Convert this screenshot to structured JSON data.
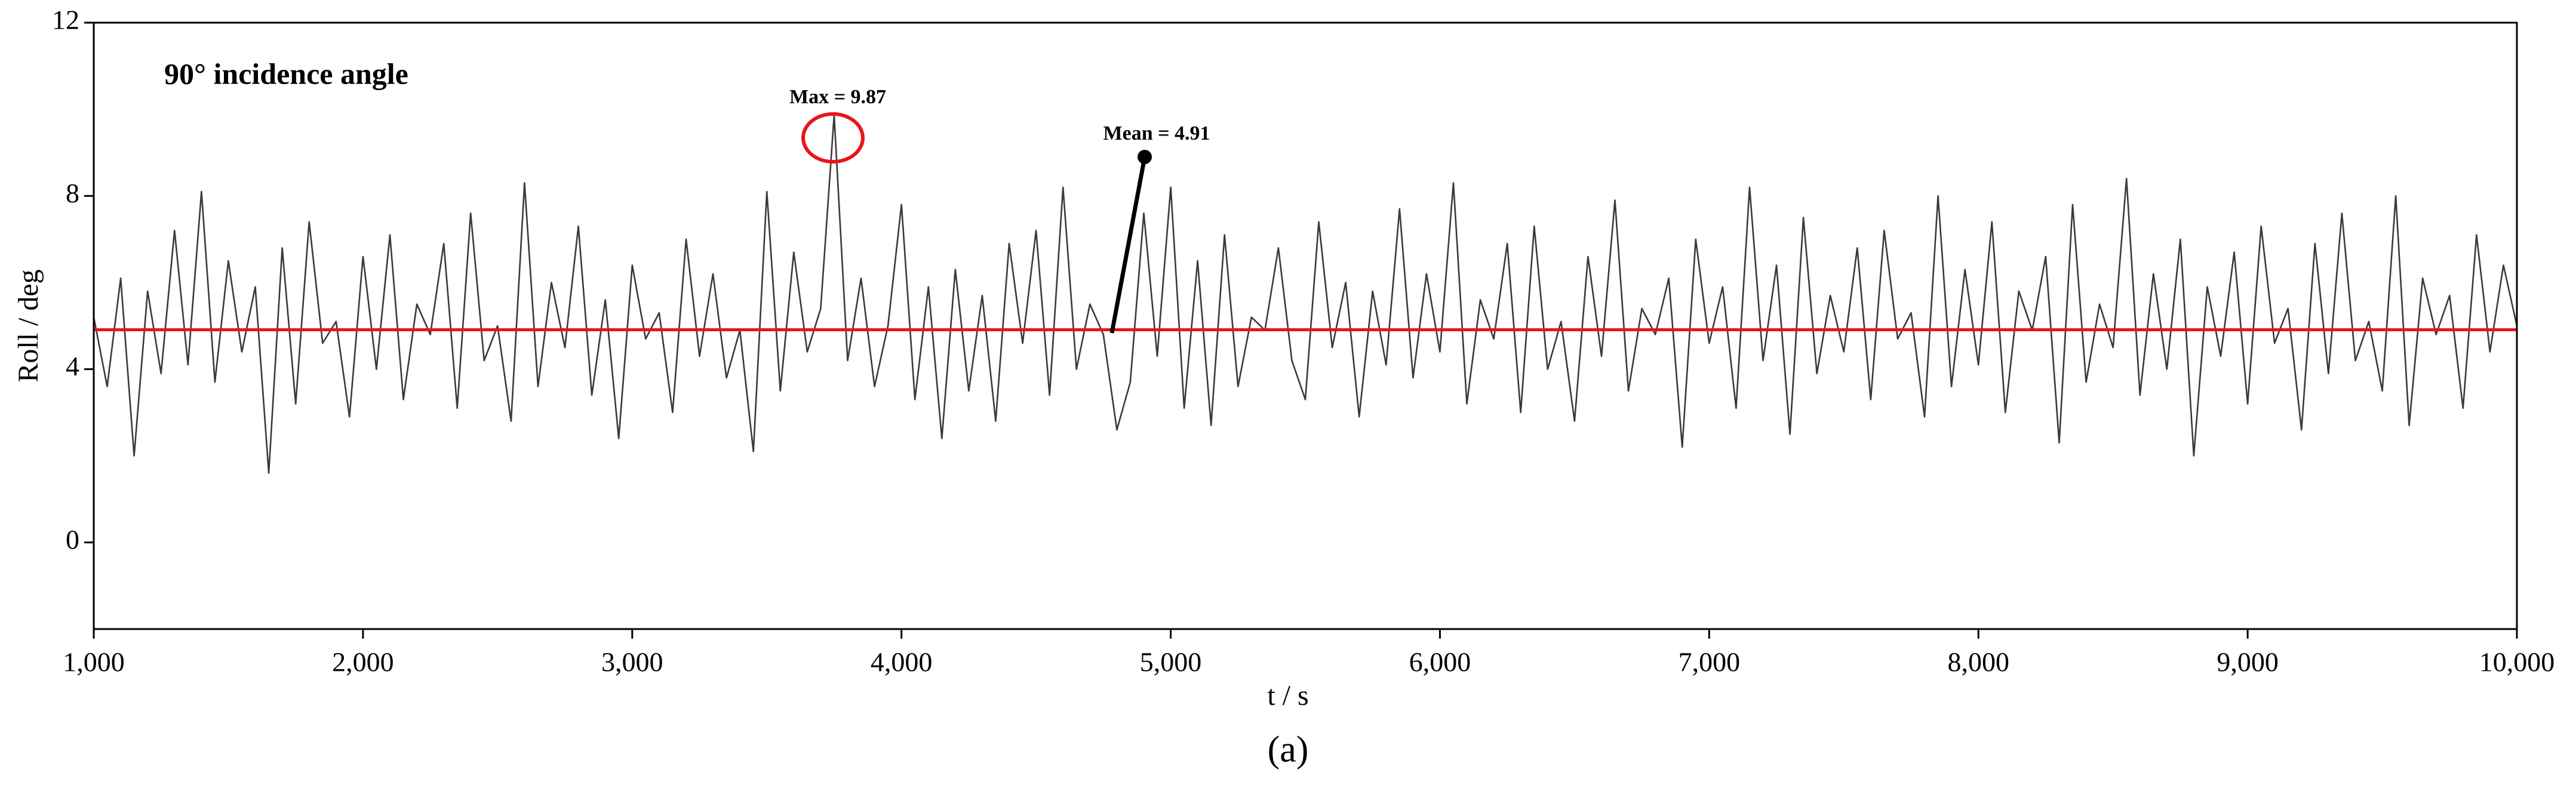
{
  "chart_data": {
    "type": "line",
    "title": "90° incidence angle",
    "xlabel": "t / s",
    "ylabel": "Roll / deg",
    "caption": "(a)",
    "max_label": "Max = 9.87",
    "mean_label": "Mean = 4.91",
    "mean": 4.91,
    "mean_color": "#e8141b",
    "xlim": [
      1000,
      10000
    ],
    "ylim": [
      -2,
      12
    ],
    "xticks": [
      {
        "value": 1000,
        "label": "1,000"
      },
      {
        "value": 2000,
        "label": "2,000"
      },
      {
        "value": 3000,
        "label": "3,000"
      },
      {
        "value": 4000,
        "label": "4,000"
      },
      {
        "value": 5000,
        "label": "5,000"
      },
      {
        "value": 6000,
        "label": "6,000"
      },
      {
        "value": 7000,
        "label": "7,000"
      },
      {
        "value": 8000,
        "label": "8,000"
      },
      {
        "value": 9000,
        "label": "9,000"
      },
      {
        "value": 10000,
        "label": "10,000"
      }
    ],
    "yticks": [
      0,
      4,
      8,
      12
    ],
    "x": [
      1000,
      1050,
      1100,
      1150,
      1200,
      1250,
      1300,
      1350,
      1400,
      1450,
      1500,
      1550,
      1600,
      1650,
      1700,
      1750,
      1800,
      1850,
      1900,
      1950,
      2000,
      2050,
      2100,
      2150,
      2200,
      2250,
      2300,
      2350,
      2400,
      2450,
      2500,
      2550,
      2600,
      2650,
      2700,
      2750,
      2800,
      2850,
      2900,
      2950,
      3000,
      3050,
      3100,
      3150,
      3200,
      3250,
      3300,
      3350,
      3400,
      3450,
      3500,
      3550,
      3600,
      3650,
      3700,
      3750,
      3800,
      3850,
      3900,
      3950,
      4000,
      4050,
      4100,
      4150,
      4200,
      4250,
      4300,
      4350,
      4400,
      4450,
      4500,
      4550,
      4600,
      4650,
      4700,
      4750,
      4800,
      4850,
      4900,
      4950,
      5000,
      5050,
      5100,
      5150,
      5200,
      5250,
      5300,
      5350,
      5400,
      5450,
      5500,
      5550,
      5600,
      5650,
      5700,
      5750,
      5800,
      5850,
      5900,
      5950,
      6000,
      6050,
      6100,
      6150,
      6200,
      6250,
      6300,
      6350,
      6400,
      6450,
      6500,
      6550,
      6600,
      6650,
      6700,
      6750,
      6800,
      6850,
      6900,
      6950,
      7000,
      7050,
      7100,
      7150,
      7200,
      7250,
      7300,
      7350,
      7400,
      7450,
      7500,
      7550,
      7600,
      7650,
      7700,
      7750,
      7800,
      7850,
      7900,
      7950,
      8000,
      8050,
      8100,
      8150,
      8200,
      8250,
      8300,
      8350,
      8400,
      8450,
      8500,
      8550,
      8600,
      8650,
      8700,
      8750,
      8800,
      8850,
      8900,
      8950,
      9000,
      9050,
      9100,
      9150,
      9200,
      9250,
      9300,
      9350,
      9400,
      9450,
      9500,
      9550,
      9600,
      9650,
      9700,
      9750,
      9800,
      9850,
      9900,
      9950,
      10000
    ],
    "series": [
      {
        "color": "#3a3a3a",
        "values": [
          5.2,
          3.6,
          6.1,
          2.0,
          5.8,
          3.9,
          7.2,
          4.1,
          8.1,
          3.7,
          6.5,
          4.4,
          5.9,
          1.6,
          6.8,
          3.2,
          7.4,
          4.6,
          5.1,
          2.9,
          6.6,
          4.0,
          7.1,
          3.3,
          5.5,
          4.8,
          6.9,
          3.1,
          7.6,
          4.2,
          5.0,
          2.8,
          8.3,
          3.6,
          6.0,
          4.5,
          7.3,
          3.4,
          5.6,
          2.4,
          6.4,
          4.7,
          5.3,
          3.0,
          7.0,
          4.3,
          6.2,
          3.8,
          4.9,
          2.1,
          8.1,
          3.5,
          6.7,
          4.4,
          5.4,
          9.87,
          4.2,
          6.1,
          3.6,
          5.0,
          7.8,
          3.3,
          5.9,
          2.4,
          6.3,
          3.5,
          5.7,
          2.8,
          6.9,
          4.6,
          7.2,
          3.4,
          8.2,
          4.0,
          5.5,
          4.8,
          2.6,
          3.7,
          7.6,
          4.3,
          8.2,
          3.1,
          6.5,
          2.7,
          7.1,
          3.6,
          5.2,
          4.9,
          6.8,
          4.2,
          3.3,
          7.4,
          4.5,
          6.0,
          2.9,
          5.8,
          4.1,
          7.7,
          3.8,
          6.2,
          4.4,
          8.3,
          3.2,
          5.6,
          4.7,
          6.9,
          3.0,
          7.3,
          4.0,
          5.1,
          2.8,
          6.6,
          4.3,
          7.9,
          3.5,
          5.4,
          4.8,
          6.1,
          2.2,
          7.0,
          4.6,
          5.9,
          3.1,
          8.2,
          4.2,
          6.4,
          2.5,
          7.5,
          3.9,
          5.7,
          4.4,
          6.8,
          3.3,
          7.2,
          4.7,
          5.3,
          2.9,
          8.0,
          3.6,
          6.3,
          4.1,
          7.4,
          3.0,
          5.8,
          4.9,
          6.6,
          2.3,
          7.8,
          3.7,
          5.5,
          4.5,
          8.4,
          3.4,
          6.2,
          4.0,
          7.0,
          2.0,
          5.9,
          4.3,
          6.7,
          3.2,
          7.3,
          4.6,
          5.4,
          2.6,
          6.9,
          3.9,
          7.6,
          4.2,
          5.1,
          3.5,
          8.0,
          2.7,
          6.1,
          4.8,
          5.7,
          3.1,
          7.1,
          4.4,
          6.4,
          5.0
        ]
      }
    ]
  }
}
